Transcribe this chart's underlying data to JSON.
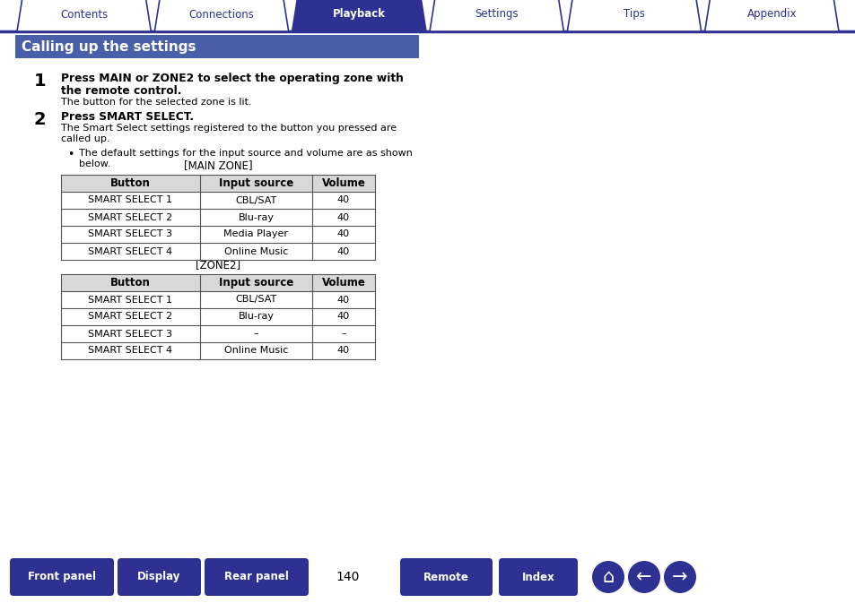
{
  "bg_color": "#ffffff",
  "tab_color_active": "#2e3192",
  "tab_color_inactive": "#ffffff",
  "tab_border_color": "#2e3192",
  "tab_text_color_active": "#ffffff",
  "tab_text_color_inactive": "#2e3192",
  "tabs": [
    "Contents",
    "Connections",
    "Playback",
    "Settings",
    "Tips",
    "Appendix"
  ],
  "active_tab": 2,
  "header_bg": "#4a5faa",
  "header_text": "Calling up the settings",
  "header_text_color": "#ffffff",
  "table1_title": "[MAIN ZONE]",
  "table1_headers": [
    "Button",
    "Input source",
    "Volume"
  ],
  "table1_rows": [
    [
      "SMART SELECT 1",
      "CBL/SAT",
      "40"
    ],
    [
      "SMART SELECT 2",
      "Blu-ray",
      "40"
    ],
    [
      "SMART SELECT 3",
      "Media Player",
      "40"
    ],
    [
      "SMART SELECT 4",
      "Online Music",
      "40"
    ]
  ],
  "table2_title": "[ZONE2]",
  "table2_headers": [
    "Button",
    "Input source",
    "Volume"
  ],
  "table2_rows": [
    [
      "SMART SELECT 1",
      "CBL/SAT",
      "40"
    ],
    [
      "SMART SELECT 2",
      "Blu-ray",
      "40"
    ],
    [
      "SMART SELECT 3",
      "–",
      "–"
    ],
    [
      "SMART SELECT 4",
      "Online Music",
      "40"
    ]
  ],
  "page_number": "140",
  "bottom_buttons": [
    "Front panel",
    "Display",
    "Rear panel",
    "Remote",
    "Index"
  ],
  "bottom_btn_color": "#2e3192",
  "bottom_btn_text_color": "#ffffff",
  "line_color": "#2e3192",
  "table_header_bg": "#d8d8d8",
  "table_border_color": "#555555"
}
